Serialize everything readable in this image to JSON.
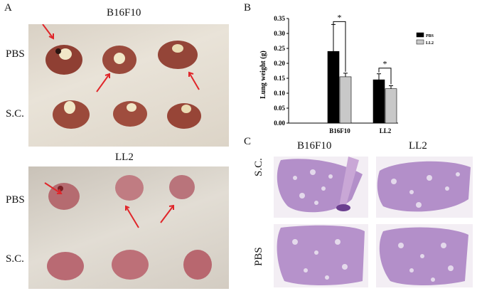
{
  "panels": {
    "a": {
      "letter": "A",
      "top_photo": {
        "title": "B16F10",
        "row1": "PBS",
        "row2": "S.C."
      },
      "bottom_photo": {
        "title": "LL2",
        "row1": "PBS",
        "row2": "S.C."
      }
    },
    "b": {
      "letter": "B"
    },
    "c": {
      "letter": "C",
      "col1": "B16F10",
      "col2": "LL2",
      "row1": "S.C.",
      "row2": "PBS"
    }
  },
  "colors": {
    "pbs": "#000000",
    "ll2": "#c8c8c8",
    "arrow": "#e0262a",
    "lung_top": "#9a4a3c",
    "lung_bottom": "#b46a72",
    "histo": "#b38fc9"
  },
  "chart_data": {
    "type": "bar",
    "ylabel": "Lung weight (g)",
    "categories": [
      "B16F10",
      "LL2"
    ],
    "series": [
      {
        "name": "PBS",
        "values": [
          0.24,
          0.145
        ],
        "errors": [
          0.09,
          0.02
        ]
      },
      {
        "name": "LL2",
        "values": [
          0.155,
          0.115
        ],
        "errors": [
          0.012,
          0.01
        ]
      }
    ],
    "ylim": [
      0,
      0.35
    ],
    "yticks": [
      "0.00",
      "0.05",
      "0.10",
      "0.15",
      "0.20",
      "0.25",
      "0.30",
      "0.35"
    ],
    "significance": [
      "*",
      "*"
    ],
    "legend": "top-right",
    "grid": false
  }
}
